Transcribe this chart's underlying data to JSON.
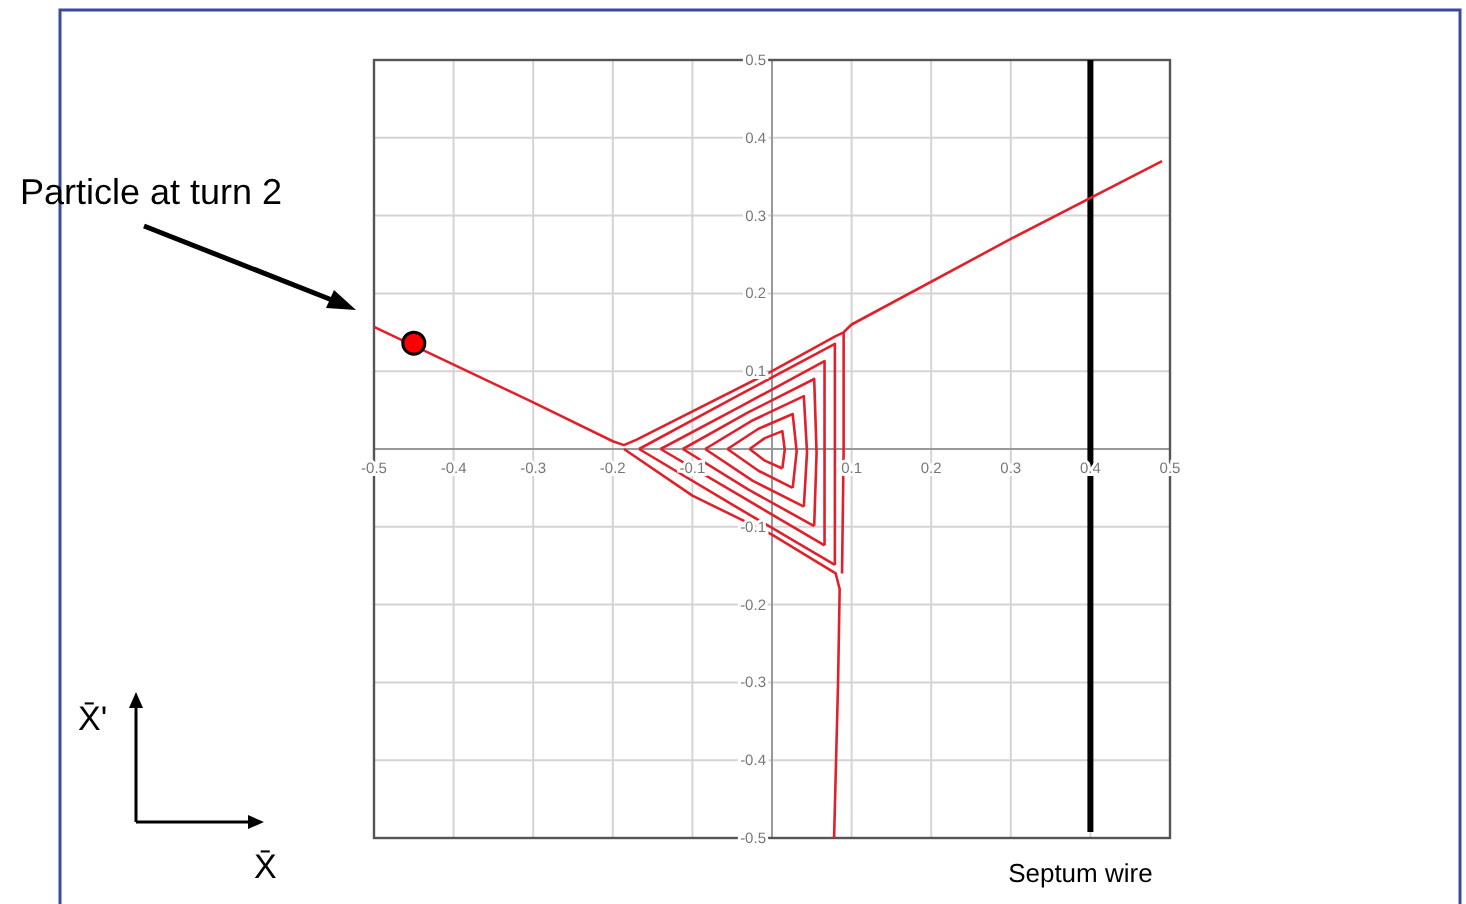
{
  "chart_data": {
    "type": "line",
    "xlim": [
      -0.5,
      0.5
    ],
    "ylim": [
      -0.5,
      0.5
    ],
    "xticks": [
      -0.5,
      -0.4,
      -0.3,
      -0.2,
      -0.1,
      {
        "value": 0,
        "label": null
      },
      0.1,
      0.2,
      0.3,
      0.4,
      0.5
    ],
    "yticks": [
      -0.5,
      -0.4,
      -0.3,
      -0.2,
      -0.1,
      {
        "value": 0,
        "label": null
      },
      0.1,
      0.2,
      0.3,
      0.4,
      0.5
    ],
    "grid": true,
    "line_style": "solid",
    "marker": "none",
    "series": [
      {
        "color": "#e0202a",
        "x": [
          -0.5,
          -0.3,
          -0.2,
          -0.186,
          -0.17,
          0,
          0.08,
          0.09,
          0.1,
          0.3,
          0.49
        ],
        "values": [
          0.157,
          0.06,
          0.01,
          0.005,
          0.012,
          0.1,
          0.145,
          0.15,
          0.16,
          0.27,
          0.37
        ]
      },
      {
        "color": "#e0202a",
        "x": [
          -0.186,
          -0.1,
          0,
          0.08,
          0.085,
          0.083,
          0.078
        ],
        "values": [
          0,
          -0.06,
          -0.11,
          -0.16,
          -0.18,
          -0.3,
          -0.5
        ]
      },
      {
        "color": "#e0202a",
        "x": [
          0.09,
          0.09,
          0.088
        ],
        "values": [
          0.15,
          0,
          -0.16
        ]
      },
      {
        "color": "#e0202a",
        "x": [
          -0.167,
          -0.044,
          0.079,
          0.079,
          0.079
        ],
        "values": [
          0,
          0.068,
          0.135,
          -0.007,
          -0.149
        ]
      },
      {
        "color": "#e0202a",
        "x": [
          -0.167,
          -0.044,
          0.079
        ],
        "values": [
          0,
          -0.075,
          -0.149
        ]
      },
      {
        "color": "#e0202a",
        "x": [
          -0.14,
          -0.037,
          0.066,
          0.066,
          0.066
        ],
        "values": [
          0,
          0.056,
          0.113,
          -0.006,
          -0.124
        ]
      },
      {
        "color": "#e0202a",
        "x": [
          -0.14,
          -0.037,
          0.066
        ],
        "values": [
          0,
          -0.062,
          -0.124
        ]
      },
      {
        "color": "#e0202a",
        "x": [
          -0.112,
          -0.03,
          0.053,
          0.056,
          0.053
        ],
        "values": [
          0,
          0.047,
          0.09,
          -0.005,
          -0.099
        ]
      },
      {
        "color": "#e0202a",
        "x": [
          -0.112,
          -0.03,
          0.053
        ],
        "values": [
          0,
          -0.052,
          -0.099
        ]
      },
      {
        "color": "#e0202a",
        "x": [
          -0.084,
          -0.024,
          0.04,
          0.044,
          0.04
        ],
        "values": [
          0,
          0.037,
          0.068,
          -0.004,
          -0.074
        ]
      },
      {
        "color": "#e0202a",
        "x": [
          -0.084,
          -0.024,
          0.04
        ],
        "values": [
          0,
          -0.041,
          -0.074
        ]
      },
      {
        "color": "#e0202a",
        "x": [
          -0.056,
          -0.017,
          0.026,
          0.031,
          0.026
        ],
        "values": [
          0,
          0.026,
          0.045,
          -0.003,
          -0.05
        ]
      },
      {
        "color": "#e0202a",
        "x": [
          -0.056,
          -0.017,
          0.026
        ],
        "values": [
          0,
          -0.028,
          -0.05
        ]
      },
      {
        "color": "#e0202a",
        "x": [
          -0.028,
          -0.009,
          0.013,
          0.016,
          0.013
        ],
        "values": [
          0,
          0.014,
          0.023,
          -0.001,
          -0.025
        ]
      },
      {
        "color": "#e0202a",
        "x": [
          -0.028,
          -0.009,
          0.013
        ],
        "values": [
          0,
          -0.015,
          -0.025
        ]
      },
      {
        "type": "scatter",
        "marker": "circle",
        "color": "#ff0000",
        "x": [
          -0.45
        ],
        "values": [
          0.136
        ]
      }
    ],
    "ref_lines": [
      {
        "axis": "x",
        "value": 0.4,
        "label": "Septum wire",
        "color": "#000000"
      }
    ],
    "annotations": [
      "Particle at turn 2",
      "X̄'",
      "X̄"
    ]
  }
}
